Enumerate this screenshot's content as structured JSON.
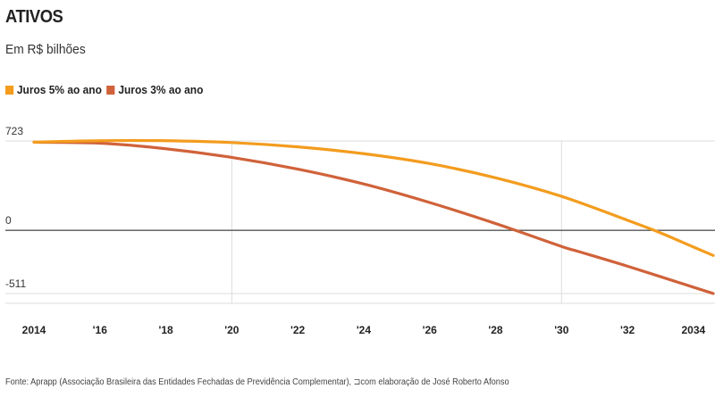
{
  "chart_data": {
    "type": "line",
    "title": "ATIVOS",
    "subtitle": "Em R$ bilhões",
    "ylim": [
      -511,
      723
    ],
    "y_ticks": [
      "723",
      "0",
      "-511"
    ],
    "y_tick_values": [
      723,
      0,
      -511
    ],
    "x_tick_labels": [
      "2014",
      "'16",
      "'18",
      "'20",
      "'22",
      "'24",
      "'26",
      "'28",
      "'30",
      "'32",
      "2034"
    ],
    "x_tick_years": [
      2014,
      2016,
      2018,
      2020,
      2022,
      2024,
      2026,
      2028,
      2030,
      2032,
      2034
    ],
    "xlim": [
      2014,
      2034.6
    ],
    "grid": "vertical at 2020 and 2030",
    "series": [
      {
        "name": "Juros 5% ao ano",
        "color": "#f39c1e",
        "x": [
          2014,
          2016,
          2018,
          2020,
          2022,
          2024,
          2026,
          2028,
          2030,
          2032,
          2033,
          2034,
          2034.6
        ],
        "y": [
          713,
          725,
          725,
          710,
          675,
          620,
          540,
          425,
          275,
          82,
          -20,
          -135,
          -203
        ]
      },
      {
        "name": "Juros 3% ao ano",
        "color": "#d0623a",
        "x": [
          2014,
          2016,
          2018,
          2020,
          2022,
          2024,
          2026,
          2028,
          2030,
          2030.5,
          2032,
          2034,
          2034.6
        ],
        "y": [
          713,
          705,
          660,
          590,
          495,
          375,
          225,
          55,
          -130,
          -170,
          -290,
          -460,
          -511
        ]
      }
    ]
  },
  "source": "Fonte: Aprapp (Associação Brasileira das Entidades Fechadas de Previdência Complementar), ⊐com elaboração de José Roberto Afonso"
}
